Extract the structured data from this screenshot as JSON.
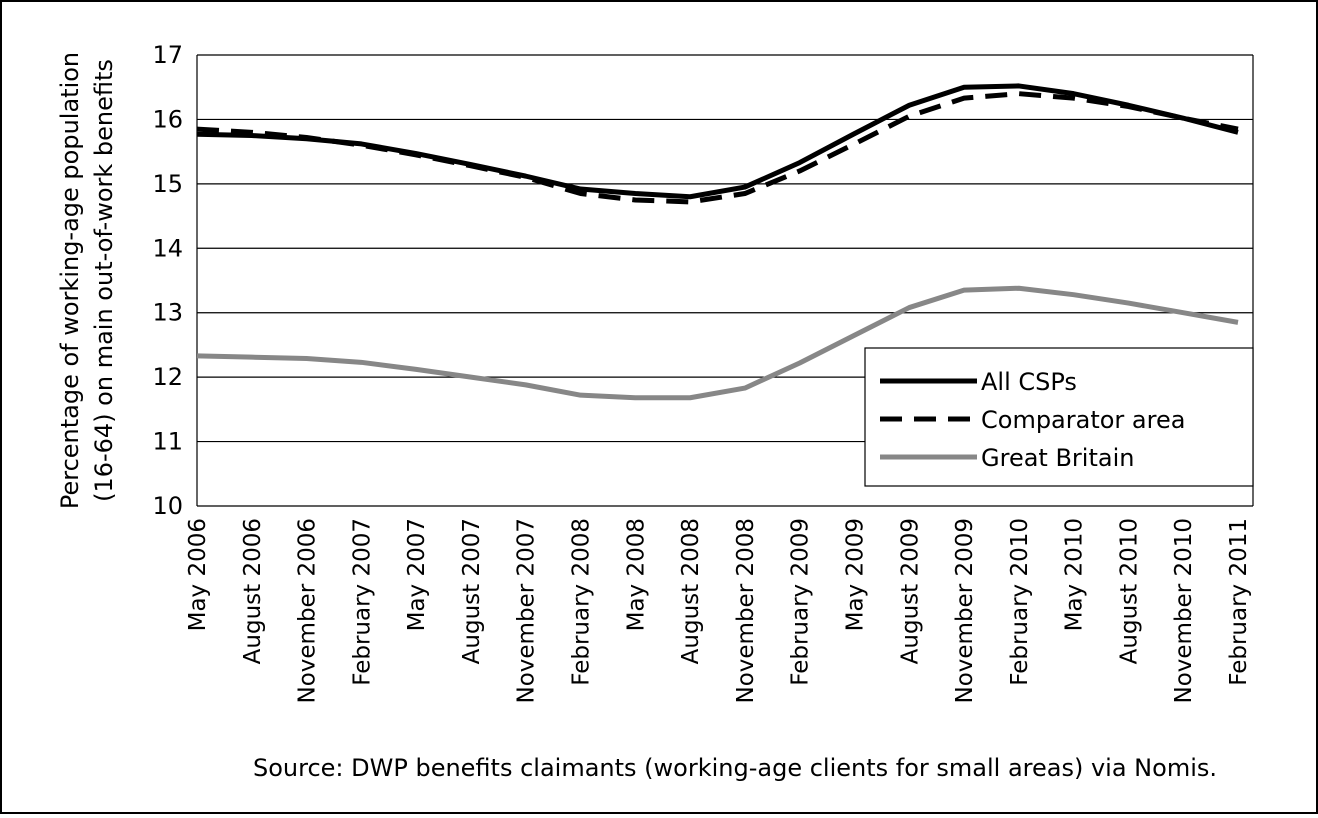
{
  "chart_data": {
    "type": "line",
    "y_label_lines": [
      "Percentage of working-age population",
      "(16-64) on main out-of-work benefits"
    ],
    "source": "Source: DWP benefits claimants (working-age clients for small areas) via Nomis.",
    "categories": [
      "May 2006",
      "August 2006",
      "November 2006",
      "February 2007",
      "May 2007",
      "August 2007",
      "November 2007",
      "February 2008",
      "May 2008",
      "August 2008",
      "November 2008",
      "February 2009",
      "May 2009",
      "August 2009",
      "November 2009",
      "February 2010",
      "May 2010",
      "August 2010",
      "November 2010",
      "February 2011"
    ],
    "series": [
      {
        "name": "All CSPs",
        "color": "#000000",
        "dash": "solid",
        "values": [
          15.77,
          15.75,
          15.7,
          15.62,
          15.47,
          15.3,
          15.12,
          14.92,
          14.85,
          14.8,
          14.95,
          15.33,
          15.78,
          16.22,
          16.5,
          16.52,
          16.4,
          16.22,
          16.02,
          15.8
        ]
      },
      {
        "name": "Comparator area",
        "color": "#000000",
        "dash": "dashed",
        "values": [
          15.85,
          15.8,
          15.72,
          15.6,
          15.45,
          15.28,
          15.1,
          14.85,
          14.75,
          14.72,
          14.85,
          15.2,
          15.62,
          16.05,
          16.33,
          16.4,
          16.33,
          16.2,
          16.02,
          15.85
        ]
      },
      {
        "name": "Great Britain",
        "color": "#878787",
        "dash": "solid",
        "values": [
          12.33,
          12.31,
          12.29,
          12.23,
          12.12,
          12.0,
          11.88,
          11.72,
          11.68,
          11.68,
          11.83,
          12.22,
          12.65,
          13.08,
          13.35,
          13.38,
          13.28,
          13.15,
          13.0,
          12.85
        ]
      }
    ],
    "ylim": [
      10,
      17
    ],
    "yticks": [
      10,
      11,
      12,
      13,
      14,
      15,
      16,
      17
    ],
    "grid": true,
    "legend": "right"
  }
}
